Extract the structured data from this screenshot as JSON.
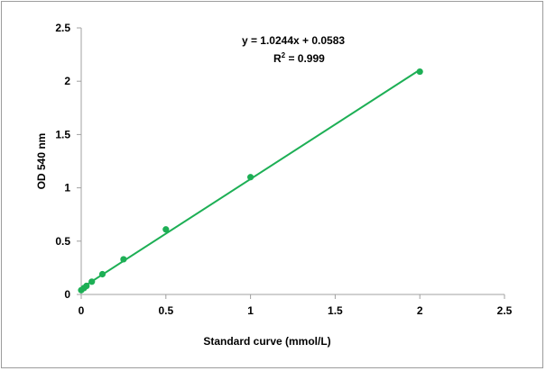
{
  "chart_data": {
    "type": "scatter",
    "title": "",
    "xlabel": "Standard curve (mmol/L)",
    "ylabel": "OD 540 nm",
    "xlim": [
      0,
      2.5
    ],
    "ylim": [
      0,
      2.5
    ],
    "xticks": [
      "0",
      "0.5",
      "1",
      "1.5",
      "2",
      "2.5"
    ],
    "yticks": [
      "0",
      "0.5",
      "1",
      "1.5",
      "2",
      "2.5"
    ],
    "grid": false,
    "legend": "none",
    "series": [
      {
        "points": [
          {
            "x": 0,
            "y": 0.04
          },
          {
            "x": 0.016,
            "y": 0.06
          },
          {
            "x": 0.031,
            "y": 0.08
          },
          {
            "x": 0.0625,
            "y": 0.12
          },
          {
            "x": 0.125,
            "y": 0.19
          },
          {
            "x": 0.25,
            "y": 0.33
          },
          {
            "x": 0.5,
            "y": 0.61
          },
          {
            "x": 1,
            "y": 1.1
          },
          {
            "x": 2,
            "y": 2.09
          }
        ],
        "color": "#1daf55"
      }
    ],
    "trendline": {
      "slope": 1.0244,
      "intercept": 0.0583,
      "x_range": [
        0,
        2
      ],
      "color": "#1daf55"
    },
    "annotations": {
      "equation": "y = 1.0244x + 0.0583",
      "r2_label": "R",
      "r2_exponent": "2",
      "r2_value": " = 0.999"
    }
  }
}
